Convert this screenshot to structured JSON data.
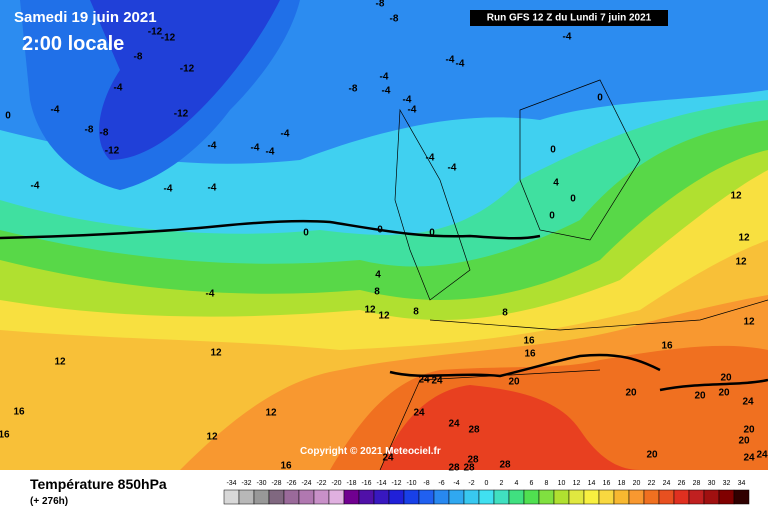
{
  "header": {
    "date": "Samedi 19 juin 2021",
    "time": "2:00 locale",
    "run": "Run GFS 12 Z du Lundi 7 juin 2021"
  },
  "copyright": "Copyright © 2021 Meteociel.fr",
  "footer": {
    "title": "Température 850hPa",
    "lead": "(+ 276h)"
  },
  "legend": {
    "values": [
      -34,
      -32,
      -30,
      -28,
      -26,
      -24,
      -22,
      -20,
      -18,
      -16,
      -14,
      -12,
      -10,
      -8,
      -6,
      -4,
      -2,
      0,
      2,
      4,
      6,
      8,
      10,
      12,
      14,
      16,
      18,
      20,
      22,
      24,
      26,
      28,
      30,
      32,
      34
    ],
    "colors": [
      "#d8d8d8",
      "#b8b8b8",
      "#989898",
      "#806880",
      "#9a6a9a",
      "#b078b0",
      "#c890c8",
      "#e0b0e0",
      "#700090",
      "#5010a8",
      "#3818c0",
      "#2020d8",
      "#1840e8",
      "#2060f0",
      "#2888f0",
      "#30a8f0",
      "#38c8f0",
      "#40e0f0",
      "#40e0c0",
      "#40e080",
      "#50e050",
      "#80e040",
      "#b0e030",
      "#e0e840",
      "#f8f040",
      "#f8d840",
      "#f8b830",
      "#f89830",
      "#f07020",
      "#e85020",
      "#e03020",
      "#c02020",
      "#a01010",
      "#800000",
      "#300000"
    ]
  },
  "contour_labels": [
    -12,
    -12,
    -8,
    -12,
    -4,
    -8,
    -8,
    -12,
    -12,
    -4,
    0,
    -4,
    -4,
    -4,
    -4,
    -8,
    -8,
    -4,
    -4,
    -4,
    -4,
    -4,
    -8,
    -4,
    -4,
    -4,
    -4,
    -4,
    -4,
    -4,
    0,
    0,
    4,
    0,
    0,
    0,
    0,
    0,
    -4,
    4,
    8,
    12,
    12,
    8,
    8,
    12,
    12,
    12,
    12,
    12,
    12,
    12,
    12,
    16,
    16,
    16,
    16,
    16,
    16,
    20,
    20,
    20,
    20,
    20,
    24,
    24,
    24,
    24,
    28,
    24,
    20,
    24,
    20,
    20,
    24,
    24,
    28,
    28,
    28,
    28
  ]
}
